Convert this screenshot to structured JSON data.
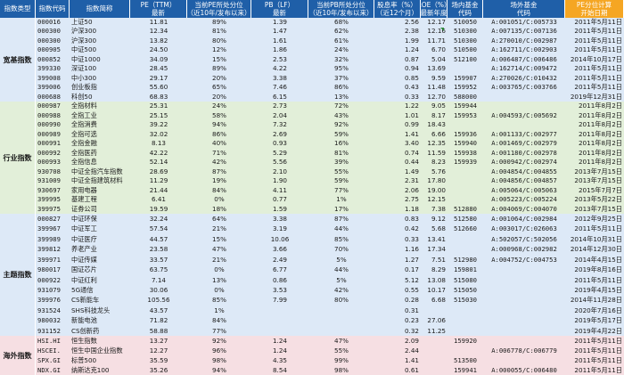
{
  "headers": [
    {
      "l1": "指数类型",
      "l2": ""
    },
    {
      "l1": "指数代码",
      "l2": ""
    },
    {
      "l1": "指数简称",
      "l2": ""
    },
    {
      "l1": "PE（TTM）",
      "l2": "最新"
    },
    {
      "l1": "当前PE所处分位",
      "l2": "（近10年/发布以来）"
    },
    {
      "l1": "PB（LF）",
      "l2": "最新"
    },
    {
      "l1": "当前PB所处分位",
      "l2": "（近10年/发布以来）"
    },
    {
      "l1": "股息率（%）",
      "l2": "（近12个月）"
    },
    {
      "l1": "ROE（%）",
      "l2": "最新年度"
    },
    {
      "l1": "场内基金",
      "l2": "代码"
    },
    {
      "l1": "场外基金",
      "l2": "代码"
    },
    {
      "l1": "PE分位计算",
      "l2": "开始日期"
    }
  ],
  "colors": {
    "header": "#1f5fa8",
    "header_last": "#f5a623",
    "宽基指数": "#dde9f7",
    "行业指数": "#e2efd9",
    "主题指数": "#dde9f7",
    "海外指数": "#f6dfe3"
  },
  "sections": [
    {
      "name": "宽基指数",
      "rows": [
        [
          "000016",
          "上证50",
          "11.81",
          "89%",
          "1.39",
          "68%",
          "2.56",
          "12.17",
          "510050",
          "A:001051/C:005733",
          "2011年5月11日"
        ],
        [
          "000300",
          "沪深300",
          "12.34",
          "81%",
          "1.47",
          "62%",
          "2.38",
          "12.16",
          "510300",
          "A:007135/C:007136",
          "2011年5月11日"
        ],
        [
          "000300",
          "沪深300",
          "13.82",
          "80%",
          "1.61",
          "61%",
          "1.99",
          "11.71",
          "510300",
          "A:270010/C:002987",
          "2011年5月11日"
        ],
        [
          "000905",
          "中证500",
          "24.50",
          "12%",
          "1.86",
          "24%",
          "1.24",
          "6.70",
          "510500",
          "A:162711/C:002903",
          "2011年5月11日"
        ],
        [
          "000852",
          "中证1000",
          "34.09",
          "15%",
          "2.53",
          "32%",
          "0.87",
          "5.04",
          "512100",
          "A:006487/C:006486",
          "2014年10月17日"
        ],
        [
          "399330",
          "深证100",
          "28.45",
          "89%",
          "4.22",
          "95%",
          "0.94",
          "13.69",
          "",
          "A:162714/C:009472",
          "2011年5月11日"
        ],
        [
          "399008",
          "中小300",
          "29.17",
          "20%",
          "3.38",
          "37%",
          "0.85",
          "9.59",
          "159907",
          "A:270026/C:010432",
          "2011年5月11日"
        ],
        [
          "399006",
          "创业板指",
          "55.60",
          "65%",
          "7.46",
          "86%",
          "0.43",
          "11.48",
          "159952",
          "A:003765/C:003766",
          "2011年5月11日"
        ],
        [
          "000688",
          "科创50",
          "68.83",
          "20%",
          "6.15",
          "13%",
          "0.33",
          "12.70",
          "588000",
          "",
          "2019年12月31日"
        ]
      ]
    },
    {
      "name": "行业指数",
      "rows": [
        [
          "000987",
          "全指材料",
          "25.31",
          "24%",
          "2.73",
          "72%",
          "1.22",
          "9.05",
          "159944",
          "",
          "2011年8月2日"
        ],
        [
          "000988",
          "全指工业",
          "25.15",
          "58%",
          "2.04",
          "43%",
          "1.01",
          "8.17",
          "159953",
          "A:004593/C:005692",
          "2011年8月2日"
        ],
        [
          "000990",
          "全指消费",
          "39.22",
          "94%",
          "7.32",
          "92%",
          "0.99",
          "18.43",
          "",
          "",
          "2011年8月2日"
        ],
        [
          "000989",
          "全指可选",
          "32.02",
          "86%",
          "2.69",
          "59%",
          "1.41",
          "6.66",
          "159936",
          "A:001133/C:002977",
          "2011年8月2日"
        ],
        [
          "000991",
          "全指金融",
          "8.13",
          "40%",
          "0.93",
          "16%",
          "3.40",
          "12.35",
          "159940",
          "A:001469/C:002979",
          "2011年8月2日"
        ],
        [
          "000992",
          "全指医药",
          "42.22",
          "71%",
          "5.29",
          "81%",
          "0.74",
          "11.59",
          "159938",
          "A:001180/C:002978",
          "2011年8月2日"
        ],
        [
          "000993",
          "全指信息",
          "52.14",
          "42%",
          "5.56",
          "39%",
          "0.44",
          "8.23",
          "159939",
          "A:000942/C:002974",
          "2011年8月2日"
        ],
        [
          "930708",
          "中证全指汽车指数",
          "28.69",
          "87%",
          "2.10",
          "55%",
          "1.49",
          "5.76",
          "",
          "A:004854/C:004855",
          "2013年7月15日"
        ],
        [
          "931009",
          "中证全指建筑材料",
          "11.29",
          "19%",
          "1.90",
          "59%",
          "2.31",
          "17.80",
          "",
          "A:004856/C:004857",
          "2013年7月15日"
        ],
        [
          "930697",
          "家用电器",
          "21.44",
          "84%",
          "4.11",
          "77%",
          "2.06",
          "19.00",
          "",
          "A:005064/C:005063",
          "2015年7月7日"
        ],
        [
          "399995",
          "基建工程",
          "6.41",
          "0%",
          "0.77",
          "1%",
          "2.75",
          "12.15",
          "",
          "A:005223/C:005224",
          "2013年5月22日"
        ],
        [
          "399975",
          "证券公司",
          "19.59",
          "18%",
          "1.59",
          "17%",
          "1.18",
          "7.38",
          "512880",
          "A:004069/C:004070",
          "2013年7月15日"
        ]
      ]
    },
    {
      "name": "主题指数",
      "rows": [
        [
          "000827",
          "中证环保",
          "32.24",
          "64%",
          "3.38",
          "87%",
          "0.83",
          "9.12",
          "512580",
          "A:001064/C:002984",
          "2012年9月25日"
        ],
        [
          "399967",
          "中证军工",
          "57.54",
          "21%",
          "3.19",
          "44%",
          "0.42",
          "5.68",
          "512660",
          "A:003017/C:026063",
          "2011年5月11日"
        ],
        [
          "399989",
          "中证医疗",
          "44.57",
          "15%",
          "10.06",
          "85%",
          "0.33",
          "13.41",
          "",
          "A:502057/C:502056",
          "2014年10月31日"
        ],
        [
          "399812",
          "养老产业",
          "23.58",
          "47%",
          "3.66",
          "70%",
          "1.16",
          "17.34",
          "",
          "A:000968/C:002982",
          "2014年12月30日"
        ],
        [
          "399971",
          "中证传媒",
          "33.57",
          "21%",
          "2.49",
          "5%",
          "1.27",
          "7.51",
          "512980",
          "A:004752/C:004753",
          "2014年4月15日"
        ],
        [
          "980017",
          "国证芯片",
          "63.75",
          "0%",
          "6.77",
          "44%",
          "0.17",
          "8.29",
          "159801",
          "",
          "2019年8月16日"
        ],
        [
          "000922",
          "中证红利",
          "7.14",
          "13%",
          "0.86",
          "5%",
          "5.12",
          "13.08",
          "515080",
          "",
          "2011年5月11日"
        ],
        [
          "931079",
          "5G通信",
          "30.06",
          "0%",
          "3.53",
          "42%",
          "0.55",
          "10.17",
          "515050",
          "",
          "2019年4月15日"
        ],
        [
          "399976",
          "CS新能车",
          "105.56",
          "85%",
          "7.99",
          "80%",
          "0.28",
          "6.68",
          "515030",
          "",
          "2014年11月28日"
        ],
        [
          "931524",
          "SHS科技龙头",
          "43.57",
          "1%",
          "",
          "",
          "0.31",
          "",
          "",
          "",
          "2020年7月16日"
        ],
        [
          "980032",
          "新能电池",
          "71.82",
          "84%",
          "",
          "",
          "0.23",
          "27.06",
          "",
          "",
          "2019年5月17日"
        ],
        [
          "931152",
          "CS创新药",
          "58.88",
          "77%",
          "",
          "",
          "0.32",
          "11.25",
          "",
          "",
          "2019年4月22日"
        ]
      ]
    },
    {
      "name": "海外指数",
      "rows": [
        [
          "HSI.HI",
          "恒生指数",
          "13.27",
          "92%",
          "1.24",
          "47%",
          "2.09",
          "",
          "159920",
          "",
          "2011年5月11日"
        ],
        [
          "HSCEI.",
          "恒生中国企业指数",
          "12.27",
          "96%",
          "1.24",
          "55%",
          "2.44",
          "",
          "",
          "A:006778/C:006779",
          "2011年5月11日"
        ],
        [
          "SPX.GI",
          "标普500",
          "35.59",
          "98%",
          "4.35",
          "99%",
          "1.41",
          "",
          "513500",
          "",
          "2011年5月11日"
        ],
        [
          "NDX.GI",
          "纳斯达克100",
          "35.26",
          "94%",
          "8.54",
          "98%",
          "0.61",
          "",
          "159941",
          "A:000055/C:006480",
          "2011年5月11日"
        ]
      ]
    }
  ]
}
